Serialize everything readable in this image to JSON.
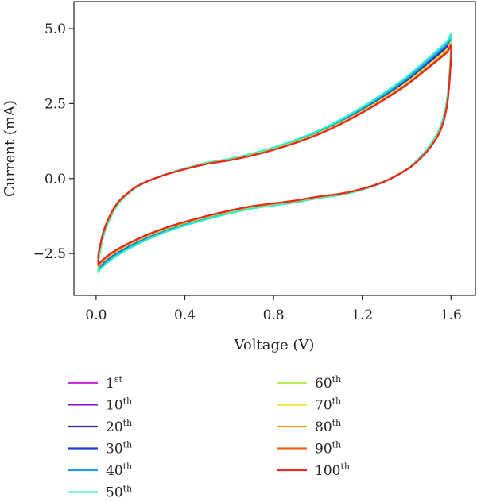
{
  "chart_data": {
    "type": "line",
    "title": "",
    "xlabel": "Voltage (V)",
    "ylabel": "Current (mA)",
    "xlim": [
      -0.1,
      1.71
    ],
    "ylim": [
      -3.9,
      5.9
    ],
    "xticks": [
      0.0,
      0.4,
      0.8,
      1.2,
      1.6
    ],
    "xtick_labels": [
      "0.0",
      "0.4",
      "0.8",
      "1.2",
      "1.6"
    ],
    "yticks": [
      -2.5,
      0.0,
      2.5,
      5.0
    ],
    "ytick_labels": [
      "−2.5",
      "0.0",
      "2.5",
      "5.0"
    ],
    "grid": false,
    "legend_position": "bottom",
    "upper_branch": {
      "x": [
        0.01,
        0.03,
        0.06,
        0.1,
        0.15,
        0.2,
        0.3,
        0.4,
        0.5,
        0.6,
        0.7,
        0.8,
        0.9,
        1.0,
        1.1,
        1.2,
        1.3,
        1.4,
        1.5,
        1.58,
        1.6
      ],
      "y": [
        -2.6,
        -1.9,
        -1.3,
        -0.8,
        -0.45,
        -0.2,
        0.1,
        0.32,
        0.5,
        0.62,
        0.78,
        0.98,
        1.22,
        1.5,
        1.85,
        2.25,
        2.7,
        3.2,
        3.8,
        4.3,
        4.5
      ]
    },
    "lower_branch": {
      "x": [
        1.6,
        1.595,
        1.58,
        1.55,
        1.5,
        1.45,
        1.4,
        1.3,
        1.2,
        1.1,
        1.0,
        0.9,
        0.8,
        0.7,
        0.6,
        0.5,
        0.4,
        0.3,
        0.2,
        0.1,
        0.05,
        0.02,
        0.01
      ],
      "y": [
        4.5,
        3.5,
        2.4,
        1.6,
        1.0,
        0.6,
        0.3,
        -0.1,
        -0.35,
        -0.52,
        -0.62,
        -0.75,
        -0.85,
        -0.95,
        -1.1,
        -1.28,
        -1.48,
        -1.72,
        -2.02,
        -2.4,
        -2.65,
        -2.85,
        -2.95
      ]
    },
    "series": [
      {
        "name": "1",
        "sup": "st",
        "color": "#d22fe6",
        "scale": 1.0
      },
      {
        "name": "10",
        "sup": "th",
        "color": "#8f1fd6",
        "scale": 1.01
      },
      {
        "name": "20",
        "sup": "th",
        "color": "#3a1fa8",
        "scale": 1.02
      },
      {
        "name": "30",
        "sup": "th",
        "color": "#1f3fd6",
        "scale": 1.03
      },
      {
        "name": "40",
        "sup": "th",
        "color": "#1f9ee6",
        "scale": 1.04
      },
      {
        "name": "50",
        "sup": "th",
        "color": "#2ef2c4",
        "scale": 1.06
      },
      {
        "name": "60",
        "sup": "th",
        "color": "#b8f05a",
        "scale": 1.0
      },
      {
        "name": "70",
        "sup": "th",
        "color": "#f2e629",
        "scale": 0.99
      },
      {
        "name": "80",
        "sup": "th",
        "color": "#f0a21f",
        "scale": 0.985
      },
      {
        "name": "90",
        "sup": "th",
        "color": "#f2621f",
        "scale": 0.98
      },
      {
        "name": "100",
        "sup": "th",
        "color": "#e62a1f",
        "scale": 0.975
      }
    ]
  }
}
